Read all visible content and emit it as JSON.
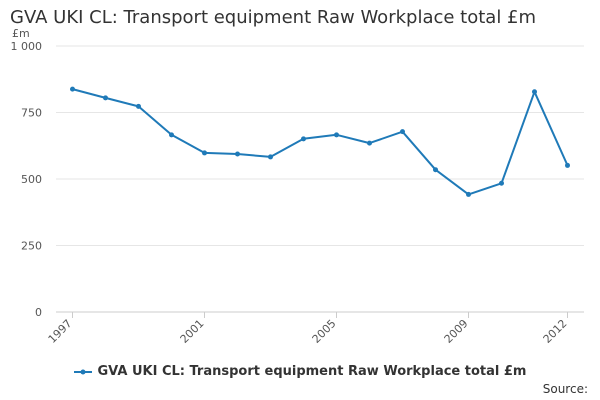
{
  "chart_data": {
    "type": "line",
    "title": "GVA UKI CL: Transport equipment Raw Workplace total £m",
    "ylabel": "£m",
    "xlabel": "",
    "x": [
      1997,
      1998,
      1999,
      2000,
      2001,
      2002,
      2003,
      2004,
      2005,
      2006,
      2007,
      2008,
      2009,
      2010,
      2011,
      2012
    ],
    "series": [
      {
        "name": "GVA UKI CL: Transport equipment Raw Workplace total £m",
        "values": [
          838,
          805,
          773,
          666,
          598,
          594,
          583,
          651,
          666,
          635,
          678,
          535,
          442,
          484,
          828,
          551
        ],
        "color": "#1f7ab8"
      }
    ],
    "ylim": [
      0,
      1000
    ],
    "yticks": [
      0,
      250,
      500,
      750,
      1000
    ],
    "ytick_labels": [
      "0",
      "250",
      "500",
      "750",
      "1 000"
    ],
    "xticks": [
      1997,
      2001,
      2005,
      2009,
      2012
    ],
    "xtick_labels": [
      "1997",
      "2001",
      "2005",
      "2009",
      "2012"
    ],
    "grid": true,
    "legend_position": "bottom"
  },
  "source_label": "Source:"
}
